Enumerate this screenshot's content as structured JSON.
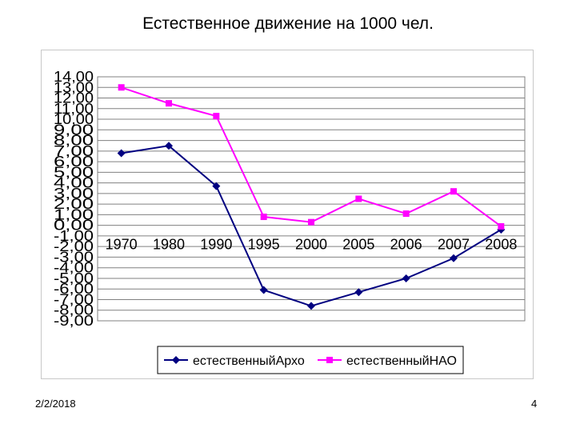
{
  "slide": {
    "title": "Естественное движение на 1000 чел.",
    "date": "2/2/2018",
    "page_number": "4"
  },
  "chart_data": {
    "type": "line",
    "title": "",
    "xlabel": "",
    "ylabel": "",
    "categories": [
      "1970",
      "1980",
      "1990",
      "1995",
      "2000",
      "2005",
      "2006",
      "2007",
      "2008"
    ],
    "y_ticks": [
      "14,00",
      "13,00",
      "12,00",
      "11,00",
      "10,00",
      "9,00",
      "8,00",
      "7,00",
      "6,00",
      "5,00",
      "4,00",
      "3,00",
      "2,00",
      "1,00",
      "0,00",
      "-1,00",
      "-2,00",
      "-3,00",
      "-4,00",
      "-5,00",
      "-6,00",
      "-7,00",
      "-8,00",
      "-9,00"
    ],
    "ylim": [
      -9,
      14
    ],
    "grid": true,
    "legend_position": "bottom",
    "series": [
      {
        "name": "естественныйАрхо",
        "color": "#000080",
        "marker": "diamond",
        "values": [
          6.8,
          7.5,
          3.7,
          -6.1,
          -7.6,
          -6.3,
          -5.0,
          -3.1,
          -0.4
        ]
      },
      {
        "name": "естественныйНАО",
        "color": "#ff00ff",
        "marker": "square",
        "values": [
          13.0,
          11.5,
          10.3,
          0.8,
          0.3,
          2.5,
          1.1,
          3.2,
          -0.1
        ]
      }
    ]
  }
}
